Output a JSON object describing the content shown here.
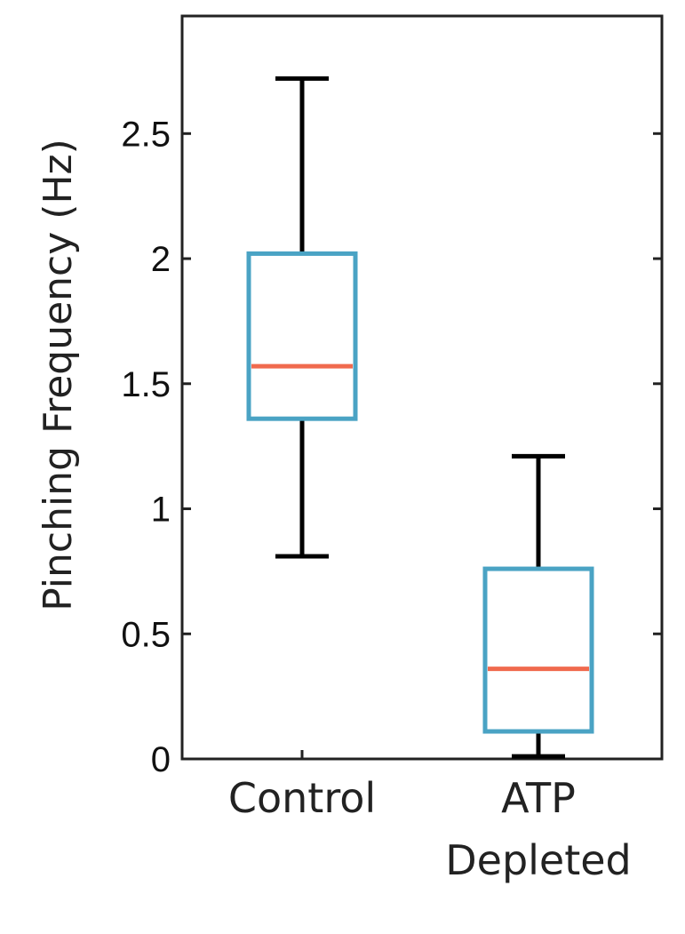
{
  "chart_data": {
    "type": "box",
    "ylabel": "Pinching Frequency (Hz)",
    "xlabel": "",
    "ylim": [
      0,
      2.97
    ],
    "yticks": [
      {
        "value": 0,
        "label": "0"
      },
      {
        "value": 0.5,
        "label": "0.5"
      },
      {
        "value": 1,
        "label": "1"
      },
      {
        "value": 1.5,
        "label": "1.5"
      },
      {
        "value": 2,
        "label": "2"
      },
      {
        "value": 2.5,
        "label": "2.5"
      }
    ],
    "categories": [
      {
        "lines": [
          "Control"
        ]
      },
      {
        "lines": [
          "ATP",
          "Depleted"
        ]
      }
    ],
    "boxes": [
      {
        "whisker_low": 0.81,
        "q1": 1.36,
        "median": 1.57,
        "q3": 2.02,
        "whisker_high": 2.72
      },
      {
        "whisker_low": 0.01,
        "q1": 0.11,
        "median": 0.36,
        "q3": 0.76,
        "whisker_high": 1.21
      }
    ],
    "colors": {
      "box": "#4aa3c4",
      "median": "#f06a4e",
      "whisker": "#000000",
      "axis": "#222222"
    },
    "grid": false
  }
}
